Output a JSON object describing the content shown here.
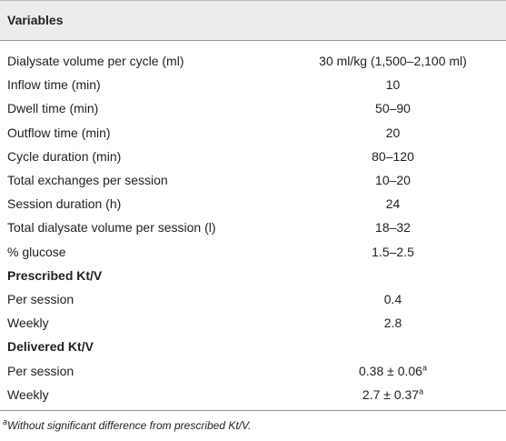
{
  "table": {
    "header": "Variables",
    "rows": [
      {
        "label": "Dialysate volume per cycle (ml)",
        "value": "30 ml/kg (1,500–2,100 ml)"
      },
      {
        "label": "Inflow time (min)",
        "value": "10"
      },
      {
        "label": "Dwell time (min)",
        "value": "50–90"
      },
      {
        "label": "Outflow time (min)",
        "value": "20"
      },
      {
        "label": "Cycle duration (min)",
        "value": "80–120"
      },
      {
        "label": "Total exchanges per session",
        "value": "10–20"
      },
      {
        "label": "Session duration (h)",
        "value": "24"
      },
      {
        "label": "Total dialysate volume per session (l)",
        "value": "18–32"
      },
      {
        "label": "% glucose",
        "value": "1.5–2.5"
      },
      {
        "section": "Prescribed Kt/V"
      },
      {
        "label": "Per session",
        "value": "0.4"
      },
      {
        "label": "Weekly",
        "value": "2.8"
      },
      {
        "section": "Delivered Kt/V"
      },
      {
        "label": "Per session",
        "value": "0.38 ± 0.06",
        "note": "a"
      },
      {
        "label": "Weekly",
        "value": "2.7 ± 0.37",
        "note": "a"
      }
    ],
    "footnote": {
      "mark": "a",
      "text": "Without significant difference from prescribed Kt/V."
    }
  }
}
